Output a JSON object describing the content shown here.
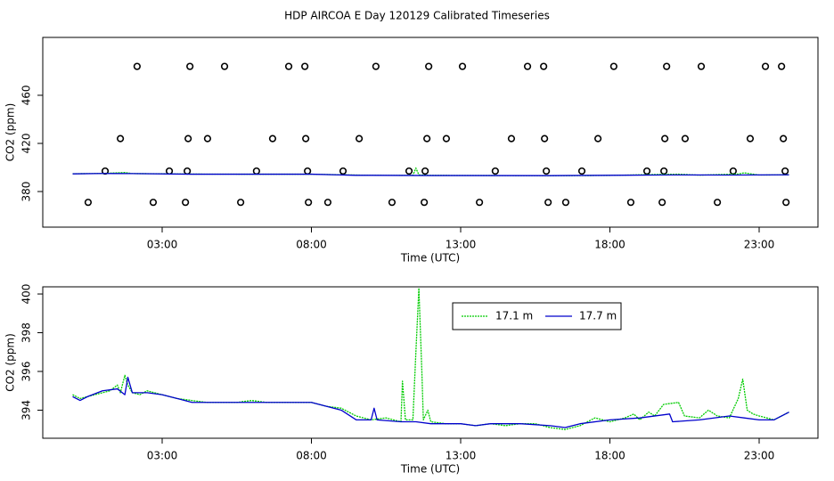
{
  "title": "HDP AIRCOA E  Day 120129  Calibrated Timeseries",
  "chart_data": [
    {
      "type": "line",
      "xlabel": "Time (UTC)",
      "ylabel": "CO2 (ppm)",
      "xlim": [
        -1,
        24.97
      ],
      "ylim": [
        350.4,
        508.1
      ],
      "xticks": [
        {
          "value": 3,
          "label": "03:00"
        },
        {
          "value": 8,
          "label": "08:00"
        },
        {
          "value": 13,
          "label": "13:00"
        },
        {
          "value": 18,
          "label": "18:00"
        },
        {
          "value": 23,
          "label": "23:00"
        }
      ],
      "yticks": [
        380,
        420,
        460
      ],
      "series": [
        {
          "type": "scatter",
          "color": "#000000",
          "x": [
            2.16,
            3.93,
            5.09,
            7.24,
            7.78,
            10.16,
            11.93,
            13.06,
            15.24,
            15.78,
            18.13,
            19.9,
            21.06,
            23.21,
            23.75,
            1.6,
            3.87,
            4.52,
            6.7,
            7.81,
            9.6,
            11.87,
            12.52,
            14.7,
            15.81,
            17.6,
            19.84,
            20.52,
            22.7,
            23.81,
            1.09,
            3.24,
            3.84,
            6.16,
            7.87,
            9.06,
            11.27,
            11.81,
            14.16,
            15.87,
            17.06,
            19.24,
            19.81,
            22.13,
            23.87,
            0.52,
            2.7,
            3.78,
            5.63,
            7.9,
            8.55,
            10.7,
            11.78,
            13.63,
            15.93,
            16.52,
            18.7,
            19.75,
            21.6,
            23.9
          ],
          "values": [
            484,
            484,
            484,
            484,
            484,
            484,
            484,
            484,
            484,
            484,
            484,
            484,
            484,
            484,
            484,
            424,
            424,
            424,
            424,
            424,
            424,
            424,
            424,
            424,
            424,
            424,
            424,
            424,
            424,
            424,
            397,
            397,
            397,
            397,
            397,
            397,
            397,
            397,
            397,
            397,
            397,
            397,
            397,
            397,
            397,
            371,
            371,
            371,
            371,
            371,
            371,
            371,
            371,
            371,
            371,
            371,
            371,
            371,
            371,
            371
          ]
        },
        {
          "type": "line",
          "color": "#00cc00",
          "dash": true,
          "x": [
            0,
            1,
            1.75,
            2,
            3,
            4,
            6,
            8,
            9.5,
            10,
            11,
            11.4,
            11.5,
            11.6,
            12,
            14,
            16,
            18,
            19.8,
            20.3,
            21,
            22.3,
            22.5,
            23,
            24
          ],
          "values": [
            394.8,
            395,
            395.8,
            394.9,
            394.8,
            394.5,
            394.4,
            394.4,
            393.7,
            393.5,
            393.4,
            393.5,
            399.5,
            393.8,
            393.4,
            393.3,
            393.1,
            393.4,
            394.3,
            394.4,
            393.6,
            394.6,
            395.5,
            393.7,
            393.9
          ]
        },
        {
          "type": "line",
          "color": "#0000cc",
          "x": [
            0,
            1,
            2,
            4,
            8,
            9.5,
            10,
            12,
            16,
            18,
            20,
            22,
            24
          ],
          "values": [
            394.7,
            395,
            394.9,
            394.4,
            394.4,
            393.5,
            393.5,
            393.3,
            393.2,
            393.5,
            393.8,
            393.7,
            393.9
          ]
        }
      ]
    },
    {
      "type": "line",
      "xlabel": "Time (UTC)",
      "ylabel": "CO2 (ppm)",
      "legend": "top",
      "xlim": [
        -1,
        24.97
      ],
      "ylim": [
        392.55,
        400.37
      ],
      "xticks": [
        {
          "value": 3,
          "label": "03:00"
        },
        {
          "value": 8,
          "label": "08:00"
        },
        {
          "value": 13,
          "label": "13:00"
        },
        {
          "value": 18,
          "label": "18:00"
        },
        {
          "value": 23,
          "label": "23:00"
        }
      ],
      "yticks": [
        394,
        396,
        398,
        400
      ],
      "series": [
        {
          "type": "line",
          "name": "17.1 m",
          "color": "#00cc00",
          "dash": true,
          "x": [
            0,
            0.25,
            0.5,
            1,
            1.25,
            1.5,
            1.6,
            1.75,
            1.85,
            2,
            2.25,
            2.5,
            3,
            3.5,
            4,
            4.5,
            5,
            5.5,
            6,
            6.5,
            7,
            7.5,
            8,
            8.5,
            9,
            9.5,
            10,
            10.5,
            11,
            11.05,
            11.15,
            11.4,
            11.5,
            11.6,
            11.7,
            11.75,
            11.9,
            12,
            12.5,
            13,
            13.5,
            14,
            14.5,
            15,
            15.5,
            16,
            16.5,
            17,
            17.5,
            18,
            18.5,
            18.8,
            19,
            19.3,
            19.5,
            19.8,
            20.3,
            20.5,
            21,
            21.3,
            21.6,
            22,
            22.3,
            22.45,
            22.6,
            22.8,
            23,
            23.5,
            24
          ],
          "values": [
            394.8,
            394.6,
            394.7,
            394.9,
            395,
            395.3,
            394.9,
            395.8,
            395.3,
            394.9,
            394.8,
            395,
            394.8,
            394.6,
            394.5,
            394.4,
            394.4,
            394.4,
            394.5,
            394.4,
            394.4,
            394.4,
            394.4,
            394.2,
            394.1,
            393.7,
            393.5,
            393.6,
            393.4,
            395.5,
            393.5,
            393.5,
            397,
            400.3,
            396,
            393.5,
            394,
            393.4,
            393.3,
            393.3,
            393.2,
            393.3,
            393.2,
            393.3,
            393.3,
            393.1,
            393,
            393.2,
            393.6,
            393.4,
            393.6,
            393.8,
            393.5,
            393.9,
            393.7,
            394.3,
            394.4,
            393.7,
            393.6,
            394,
            393.7,
            393.6,
            394.6,
            395.6,
            394,
            393.8,
            393.7,
            393.5,
            393.9
          ]
        },
        {
          "type": "line",
          "name": "17.7 m",
          "color": "#0000cc",
          "x": [
            0,
            0.25,
            0.5,
            1,
            1.5,
            1.75,
            1.85,
            2,
            2.5,
            3,
            3.5,
            4,
            5,
            6,
            7,
            8,
            8.5,
            9,
            9.5,
            10,
            10.1,
            10.2,
            11,
            11.5,
            12,
            13,
            13.5,
            14,
            15,
            16,
            16.5,
            17,
            18,
            19,
            20,
            20.1,
            21,
            22,
            22.5,
            23,
            23.5,
            24
          ],
          "values": [
            394.7,
            394.5,
            394.7,
            395,
            395.1,
            394.8,
            395.7,
            394.9,
            394.9,
            394.8,
            394.6,
            394.4,
            394.4,
            394.4,
            394.4,
            394.4,
            394.2,
            394,
            393.5,
            393.5,
            394.1,
            393.5,
            393.4,
            393.4,
            393.3,
            393.3,
            393.2,
            393.3,
            393.3,
            393.2,
            393.1,
            393.3,
            393.5,
            393.6,
            393.8,
            393.4,
            393.5,
            393.7,
            393.6,
            393.5,
            393.5,
            393.9
          ]
        }
      ]
    }
  ]
}
